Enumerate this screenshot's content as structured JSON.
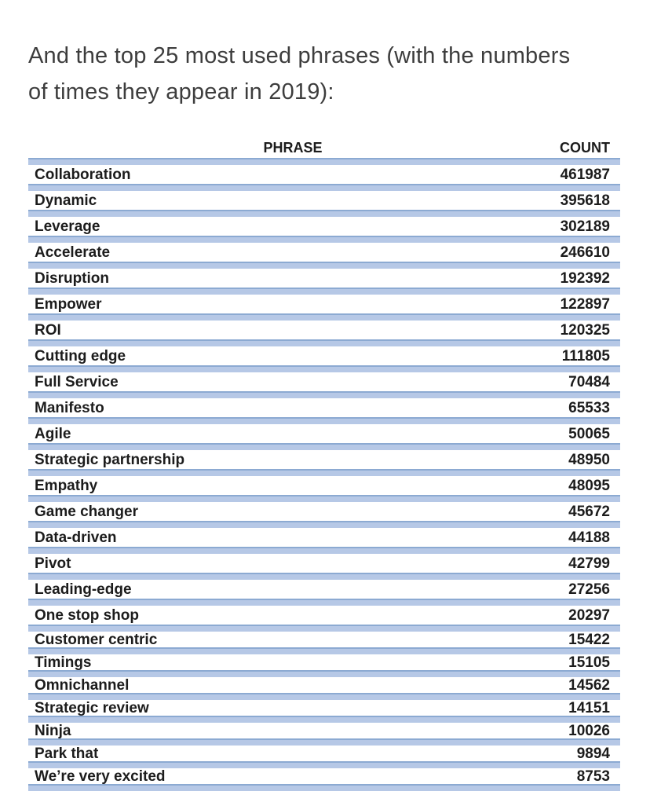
{
  "heading": {
    "line1": "And the top 25 most used phrases (with the numbers",
    "line2": "of times they appear in 2019):"
  },
  "table": {
    "columns": {
      "phrase": "PHRASE",
      "count": "COUNT"
    },
    "rows": [
      {
        "phrase": "Collaboration",
        "count": "461987"
      },
      {
        "phrase": "Dynamic",
        "count": "395618"
      },
      {
        "phrase": "Leverage",
        "count": "302189"
      },
      {
        "phrase": "Accelerate",
        "count": "246610"
      },
      {
        "phrase": "Disruption",
        "count": "192392"
      },
      {
        "phrase": "Empower",
        "count": "122897"
      },
      {
        "phrase": "ROI",
        "count": "120325"
      },
      {
        "phrase": "Cutting edge",
        "count": "111805"
      },
      {
        "phrase": "Full Service",
        "count": "70484"
      },
      {
        "phrase": "Manifesto",
        "count": "65533"
      },
      {
        "phrase": "Agile",
        "count": "50065"
      },
      {
        "phrase": "Strategic partnership",
        "count": "48950"
      },
      {
        "phrase": "Empathy",
        "count": "48095"
      },
      {
        "phrase": "Game changer",
        "count": "45672"
      },
      {
        "phrase": "Data-driven",
        "count": "44188"
      },
      {
        "phrase": "Pivot",
        "count": "42799"
      },
      {
        "phrase": "Leading-edge",
        "count": "27256"
      },
      {
        "phrase": "One stop shop",
        "count": "20297"
      },
      {
        "phrase": "Customer centric",
        "count": "15422"
      },
      {
        "phrase": "Timings",
        "count": "15105"
      },
      {
        "phrase": "Omnichannel",
        "count": "14562"
      },
      {
        "phrase": "Strategic review",
        "count": "14151"
      },
      {
        "phrase": "Ninja",
        "count": "10026"
      },
      {
        "phrase": "Park that",
        "count": "9894"
      },
      {
        "phrase": "We’re very excited",
        "count": "8753"
      }
    ]
  },
  "colors": {
    "band_light": "#b6c8e6",
    "band_dark": "#8caad2",
    "heading_text": "#3d3d3d",
    "table_text": "#1c1c1c",
    "page_bg": "#ffffff"
  }
}
